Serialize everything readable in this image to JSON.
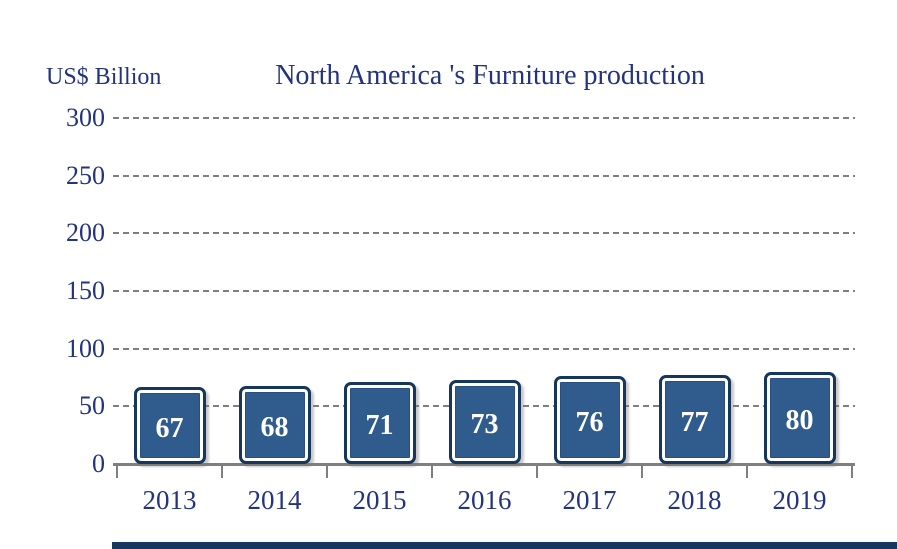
{
  "chart_data": {
    "type": "bar",
    "title": "North America 's Furniture production",
    "ylabel": "US$ Billion",
    "xlabel": "",
    "categories": [
      "2013",
      "2014",
      "2015",
      "2016",
      "2017",
      "2018",
      "2019"
    ],
    "values": [
      67,
      68,
      71,
      73,
      76,
      77,
      80
    ],
    "ylim": [
      0,
      300
    ],
    "yticks": [
      0,
      50,
      100,
      150,
      200,
      250,
      300
    ],
    "grid": "horizontal-dashed",
    "legend": "none",
    "bar_labels_inside": true,
    "colors": {
      "text_navy": "#243380",
      "bar_fill": "#2F5B8D",
      "bar_border": "#16365C",
      "bar_inner_ring": "#FFFFFF",
      "bar_value_text": "#FFFFFF",
      "gridline": "#7F7F7F",
      "axis": "#7F7F7F",
      "footer_rule": "#17375E"
    }
  }
}
